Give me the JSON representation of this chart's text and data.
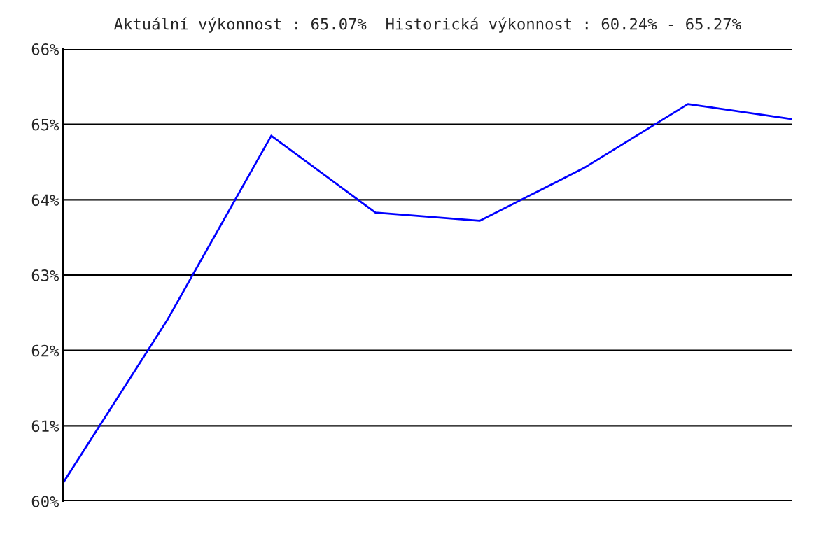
{
  "chart_data": {
    "type": "line",
    "title": "Aktuální výkonnost : 65.07%  Historická výkonnost : 60.24% - 65.27%",
    "categories": [
      null,
      null,
      null,
      null,
      null,
      null,
      null,
      null
    ],
    "series": [
      {
        "color": "#0000ff",
        "values": [
          60.24,
          62.4,
          64.85,
          63.83,
          63.72,
          64.42,
          65.27,
          65.07
        ]
      }
    ],
    "ylim": [
      60,
      66
    ],
    "yticks": [
      {
        "value": 60,
        "label": "60%"
      },
      {
        "value": 61,
        "label": "61%"
      },
      {
        "value": 62,
        "label": "62%"
      },
      {
        "value": 63,
        "label": "63%"
      },
      {
        "value": 64,
        "label": "64%"
      },
      {
        "value": 65,
        "label": "65%"
      },
      {
        "value": 66,
        "label": "66%"
      }
    ],
    "grid": "y",
    "tick_labels": "y"
  }
}
